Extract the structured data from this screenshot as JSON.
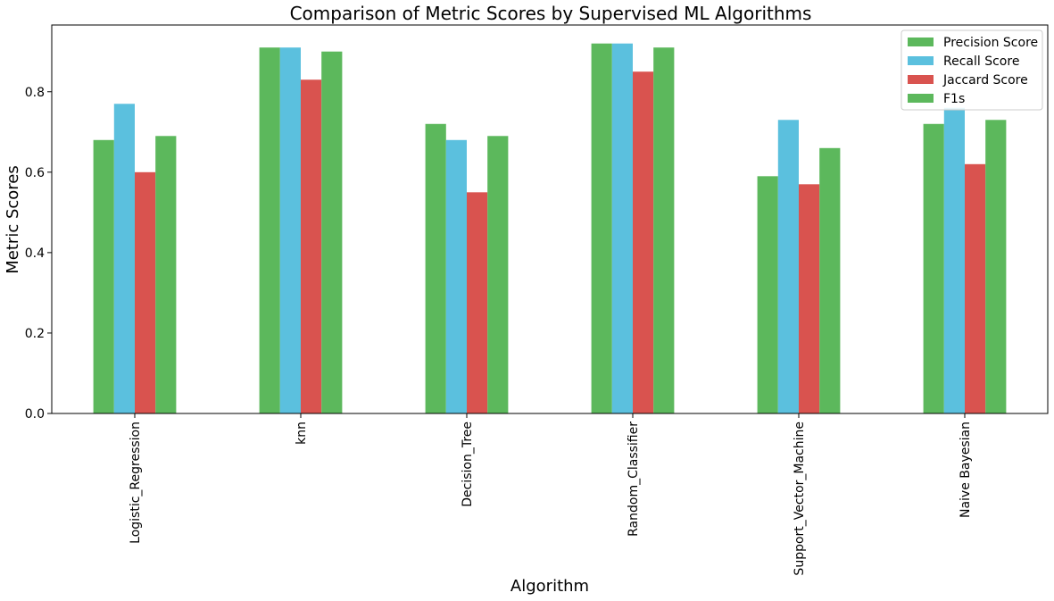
{
  "chart_data": {
    "type": "bar",
    "title": "Comparison of Metric Scores by Supervised ML Algorithms",
    "xlabel": "Algorithm",
    "ylabel": "Metric Scores",
    "ylim": [
      0,
      0.966
    ],
    "yticks": [
      "0.0",
      "0.2",
      "0.4",
      "0.6",
      "0.8"
    ],
    "categories": [
      "Logistic_Regression",
      "knn",
      "Decision_Tree",
      "Random_Classifier",
      "Support_Vector_Machine",
      "Naive Bayesian"
    ],
    "series": [
      {
        "name": "Precision Score",
        "color": "#5cb85c",
        "values": [
          0.68,
          0.91,
          0.72,
          0.92,
          0.59,
          0.72
        ]
      },
      {
        "name": "Recall Score",
        "color": "#5bc0de",
        "values": [
          0.77,
          0.91,
          0.68,
          0.92,
          0.73,
          0.76
        ]
      },
      {
        "name": "Jaccard Score",
        "color": "#d9534f",
        "values": [
          0.6,
          0.83,
          0.55,
          0.85,
          0.57,
          0.62
        ]
      },
      {
        "name": "F1s",
        "color": "#5cb85c",
        "values": [
          0.69,
          0.9,
          0.69,
          0.91,
          0.66,
          0.73
        ]
      }
    ],
    "grid": false,
    "legend_position": "top-right"
  }
}
